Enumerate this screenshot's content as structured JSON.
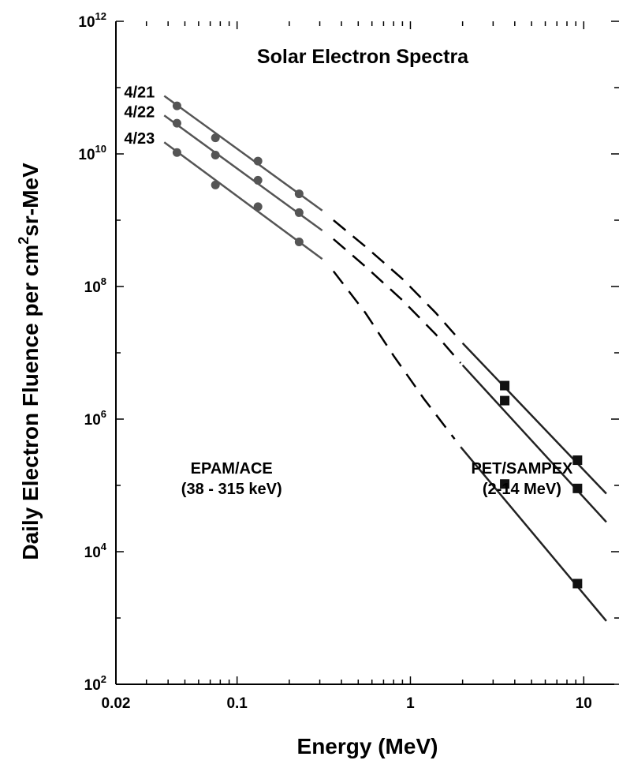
{
  "chart_data": {
    "type": "line",
    "title": "Solar Electron Spectra",
    "xlabel": "Energy (MeV)",
    "ylabel": {
      "prefix": "Daily Electron Fluence per cm",
      "superscript": "2",
      "suffix": "sr-MeV"
    },
    "x_scale": "log",
    "y_scale": "log",
    "xlim": [
      0.02,
      15
    ],
    "ylim": [
      100,
      1000000000000
    ],
    "x_ticks": [
      {
        "value": 0.02,
        "label": "0.02"
      },
      {
        "value": 0.1,
        "label": "0.1"
      },
      {
        "value": 1,
        "label": "1"
      },
      {
        "value": 10,
        "label": "10"
      }
    ],
    "y_ticks": [
      {
        "value": 100,
        "base": "10",
        "exp": "2"
      },
      {
        "value": 10000,
        "base": "10",
        "exp": "4"
      },
      {
        "value": 1000000,
        "base": "10",
        "exp": "6"
      },
      {
        "value": 100000000,
        "base": "10",
        "exp": "8"
      },
      {
        "value": 10000000000,
        "base": "10",
        "exp": "10"
      },
      {
        "value": 1000000000000,
        "base": "10",
        "exp": "12"
      }
    ],
    "grid": false,
    "annotations": [
      {
        "lines": [
          "EPAM/ACE",
          "(38 - 315 keV)"
        ],
        "x": 0.093,
        "y": 150000
      },
      {
        "lines": [
          "PET/SAMPEX",
          "(2-14 MeV)"
        ],
        "x": 4.4,
        "y": 150000
      }
    ],
    "series": [
      {
        "name": "4/21",
        "low_fit": {
          "x": [
            0.038,
            0.31
          ],
          "y": [
            75000000000,
            1400000000
          ]
        },
        "dashed": {
          "x": [
            0.36,
            0.55,
            0.9,
            1.4,
            1.95
          ],
          "y": [
            1000000000,
            400000000,
            130000000,
            40000000,
            15000000
          ]
        },
        "high_fit": {
          "x": [
            2.0,
            13.5
          ],
          "y": [
            14000000,
            75000
          ]
        },
        "points_low": {
          "x": [
            0.045,
            0.075,
            0.132,
            0.228
          ],
          "y": [
            53000000000,
            17500000000,
            7800000000,
            2500000000
          ]
        },
        "points_high": {
          "x": [
            3.5,
            9.2
          ],
          "y": [
            3200000,
            240000
          ]
        }
      },
      {
        "name": "4/22",
        "low_fit": {
          "x": [
            0.038,
            0.31
          ],
          "y": [
            38000000000,
            700000000
          ]
        },
        "dashed": {
          "x": [
            0.36,
            0.55,
            0.9,
            1.4,
            1.95
          ],
          "y": [
            520000000,
            200000000,
            62000000,
            19000000,
            7000000
          ]
        },
        "high_fit": {
          "x": [
            2.0,
            13.5
          ],
          "y": [
            6500000,
            28000
          ]
        },
        "points_low": {
          "x": [
            0.045,
            0.075,
            0.132,
            0.228
          ],
          "y": [
            29000000000,
            9600000000,
            4000000000,
            1300000000
          ]
        },
        "points_high": {
          "x": [
            3.5,
            9.2
          ],
          "y": [
            1900000,
            90000
          ]
        }
      },
      {
        "name": "4/23",
        "low_fit": {
          "x": [
            0.038,
            0.31
          ],
          "y": [
            15000000000,
            260000000
          ]
        },
        "dashed": {
          "x": [
            0.36,
            0.55,
            0.8,
            1.2,
            1.8
          ],
          "y": [
            170000000,
            40000000,
            9000000,
            2000000,
            500000
          ]
        },
        "high_fit": {
          "x": [
            1.95,
            13.5
          ],
          "y": [
            380000,
            900
          ]
        },
        "points_low": {
          "x": [
            0.045,
            0.075,
            0.132,
            0.228
          ],
          "y": [
            10500000000,
            3400000000,
            1600000000,
            470000000
          ]
        },
        "points_high": {
          "x": [
            3.5,
            9.2
          ],
          "y": [
            105000,
            3300
          ]
        }
      }
    ]
  }
}
